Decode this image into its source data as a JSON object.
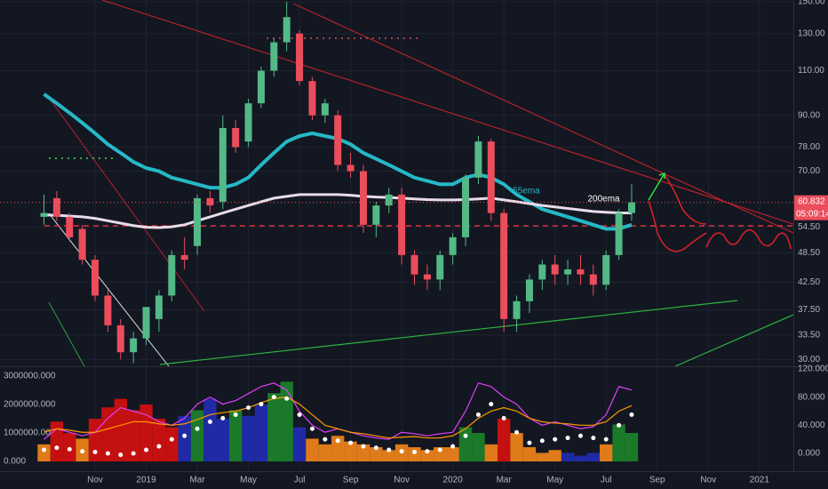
{
  "chart_data": [
    {
      "type": "candlestick",
      "categories": [
        null,
        null,
        null,
        null,
        "Nov",
        null,
        null,
        null,
        "2019",
        null,
        null,
        null,
        "Mar",
        null,
        null,
        null,
        "May",
        null,
        null,
        null,
        "Jul",
        null,
        null,
        null,
        "Sep",
        null,
        null,
        null,
        "Nov",
        null,
        null,
        null,
        "2020",
        null,
        null,
        null,
        "Mar",
        null,
        null,
        null,
        "May",
        null,
        null,
        null,
        "Jul",
        null,
        null,
        null,
        "Sep",
        null,
        null,
        null,
        "Nov",
        null,
        null,
        null,
        "2021",
        null,
        null
      ],
      "open": [
        57,
        62,
        57,
        54,
        47,
        40,
        35,
        31,
        33,
        36,
        40,
        48,
        50,
        62,
        61,
        85,
        80,
        95,
        110,
        125,
        130,
        105,
        90,
        90,
        72,
        70,
        55,
        60,
        63,
        48,
        44,
        43,
        48,
        52,
        68,
        80,
        58,
        36,
        39,
        43,
        46,
        44,
        45,
        44,
        42,
        48,
        58,
        null,
        null,
        null,
        null,
        null,
        null,
        null,
        null,
        null,
        null,
        null,
        null
      ],
      "high": [
        63,
        64,
        58,
        55,
        48,
        41,
        36,
        34,
        38,
        41,
        49,
        52,
        63,
        64,
        90,
        88,
        97,
        112,
        127,
        150,
        132,
        107,
        97,
        92,
        76,
        72,
        61,
        65,
        65,
        49,
        46,
        49,
        53,
        69,
        82,
        81,
        59,
        40,
        44,
        47,
        48,
        47,
        48,
        46,
        49,
        59,
        66,
        null,
        null,
        null,
        null,
        null,
        null,
        null,
        null,
        null,
        null,
        null,
        null
      ],
      "low": [
        55,
        56,
        51,
        46,
        39,
        34,
        30,
        29.5,
        32,
        34,
        39,
        45,
        48,
        58,
        59,
        76,
        78,
        93,
        107,
        120,
        103,
        88,
        87,
        70,
        68,
        53,
        52,
        58,
        46,
        42,
        41,
        41,
        46,
        50,
        66,
        56,
        34,
        34,
        37,
        41,
        42,
        42,
        42,
        40,
        41,
        47,
        56,
        null,
        null,
        null,
        null,
        null,
        null,
        null,
        null,
        null,
        null,
        null,
        null
      ],
      "close": [
        58,
        57,
        52,
        47,
        40,
        35,
        31,
        33,
        38,
        40,
        48,
        47,
        62,
        60,
        85,
        78,
        95,
        110,
        125,
        140,
        105,
        90,
        95,
        72,
        70,
        55,
        60,
        63,
        48,
        44,
        43,
        48,
        52,
        68,
        80,
        58,
        36,
        39,
        43,
        46,
        44,
        45,
        44,
        42,
        48,
        58,
        60.832,
        null,
        null,
        null,
        null,
        null,
        null,
        null,
        null,
        null,
        null,
        null,
        null
      ],
      "up_color": "#53b987",
      "down_color": "#eb4d5c",
      "overlays": [
        {
          "name": "55ema",
          "color": "#26b8c6",
          "values": [
            99,
            95,
            91,
            87,
            83,
            79,
            76,
            73,
            71,
            70,
            68,
            67,
            66,
            65,
            65,
            66,
            68,
            72,
            76,
            80,
            82,
            83,
            82,
            81,
            79,
            76,
            74,
            72,
            70,
            68,
            67,
            66,
            66,
            68,
            69,
            68,
            66,
            63,
            61,
            59,
            58,
            57,
            56,
            55,
            54,
            54,
            55,
            null,
            null,
            null,
            null,
            null,
            null,
            null,
            null,
            null,
            null,
            null,
            null
          ]
        },
        {
          "name": "200ema",
          "color": "#e8dce8",
          "values": [
            57.5,
            57.4,
            57.2,
            57,
            56.6,
            56,
            55.4,
            54.8,
            54.4,
            54.3,
            54.5,
            55,
            56,
            57,
            58,
            59,
            60,
            61,
            62,
            62.5,
            63,
            63,
            63,
            63,
            62.8,
            62.5,
            62.3,
            62.2,
            62,
            61.8,
            61.6,
            61.5,
            61.5,
            61.6,
            61.8,
            62,
            61.5,
            61,
            60.5,
            60,
            59.6,
            59.2,
            58.8,
            58.4,
            58.2,
            58,
            58,
            null,
            null,
            null,
            null,
            null,
            null,
            null,
            null,
            null,
            null,
            null,
            null
          ]
        }
      ],
      "log_scale": true,
      "grid": true,
      "ylim": [
        29.1,
        151.2
      ],
      "yticks": [
        {
          "value": 150,
          "label": "150.00"
        },
        {
          "value": 130,
          "label": "130.00"
        },
        {
          "value": 110,
          "label": "110.00"
        },
        {
          "value": 90,
          "label": "90.00"
        },
        {
          "value": 78,
          "label": "78.00"
        },
        {
          "value": 70,
          "label": "70.00"
        },
        {
          "value": 54.5,
          "label": "54.50"
        },
        {
          "value": 48.5,
          "label": "48.50"
        },
        {
          "value": 42.5,
          "label": "42.50"
        },
        {
          "value": 37.5,
          "label": "37.50"
        },
        {
          "value": 33.5,
          "label": "33.50"
        },
        {
          "value": 30,
          "label": "30.00"
        }
      ],
      "last_price": 60.832,
      "countdown": "05:09:14"
    },
    {
      "type": "area",
      "volume": {
        "values": [
          600000,
          1400000,
          1000000,
          800000,
          1500000,
          1900000,
          2200000,
          1800000,
          2000000,
          1500000,
          1200000,
          1600000,
          1800000,
          2200000,
          1500000,
          1800000,
          1600000,
          2000000,
          2400000,
          2800000,
          1200000,
          800000,
          600000,
          900000,
          700000,
          600000,
          500000,
          400000,
          600000,
          500000,
          400000,
          500000,
          500000,
          1200000,
          1000000,
          600000,
          1500000,
          1000000,
          500000,
          300000,
          400000,
          300000,
          200000,
          300000,
          600000,
          1300000,
          1000000
        ],
        "colors": [
          "#e07b1a",
          "#c41010",
          "#c41010",
          "#e07b1a",
          "#c41010",
          "#c41010",
          "#c41010",
          "#c41010",
          "#c41010",
          "#c41010",
          "#c41010",
          "#1f2aa6",
          "#1b7a2a",
          "#1f2aa6",
          "#1f2aa6",
          "#1b7a2a",
          "#1f2aa6",
          "#1f2aa6",
          "#1b7a2a",
          "#1b7a2a",
          "#1f2aa6",
          "#e07b1a",
          "#e07b1a",
          "#e07b1a",
          "#e07b1a",
          "#e07b1a",
          "#e07b1a",
          "#e07b1a",
          "#e07b1a",
          "#e07b1a",
          "#e07b1a",
          "#e07b1a",
          "#e07b1a",
          "#1b7a2a",
          "#1b7a2a",
          "#e07b1a",
          "#c41010",
          "#e07b1a",
          "#e07b1a",
          "#e07b1a",
          "#e07b1a",
          "#1f2aa6",
          "#1f2aa6",
          "#1f2aa6",
          "#e07b1a",
          "#1b7a2a",
          "#1b7a2a"
        ]
      },
      "series": [
        {
          "color": "#e040fb",
          "axis": "y2",
          "values": [
            20,
            35,
            30,
            25,
            30,
            50,
            65,
            60,
            55,
            45,
            40,
            50,
            70,
            80,
            70,
            75,
            85,
            95,
            100,
            90,
            60,
            40,
            30,
            35,
            30,
            25,
            22,
            20,
            30,
            28,
            25,
            28,
            30,
            60,
            100,
            95,
            80,
            70,
            50,
            40,
            45,
            40,
            35,
            38,
            55,
            95,
            90
          ]
        },
        {
          "color": "#ff9800",
          "axis": "y2",
          "values": [
            30,
            35,
            33,
            30,
            30,
            35,
            40,
            45,
            45,
            42,
            40,
            42,
            48,
            55,
            58,
            60,
            65,
            72,
            78,
            80,
            70,
            55,
            40,
            35,
            30,
            28,
            25,
            22,
            23,
            24,
            22,
            22,
            25,
            35,
            50,
            60,
            65,
            60,
            50,
            45,
            43,
            42,
            40,
            40,
            45,
            60,
            68
          ]
        },
        {
          "color": "#ffffff",
          "axis": "y2",
          "style": "dots",
          "values": [
            5,
            8,
            6,
            3,
            2,
            0,
            -2,
            0,
            5,
            10,
            20,
            25,
            35,
            45,
            50,
            55,
            65,
            70,
            80,
            78,
            55,
            35,
            20,
            18,
            15,
            10,
            8,
            5,
            3,
            2,
            3,
            5,
            10,
            25,
            55,
            70,
            50,
            30,
            15,
            18,
            20,
            22,
            25,
            22,
            20,
            40,
            55
          ]
        }
      ],
      "ylim": [
        -343750,
        3312500
      ],
      "yticks": [
        {
          "value": 3000000,
          "label": "3000000.000"
        },
        {
          "value": 2000000,
          "label": "2000000.000"
        },
        {
          "value": 1000000,
          "label": "1000000.000"
        },
        {
          "value": 0,
          "label": "0.000"
        }
      ],
      "y2lim": [
        -25.3,
        122.5
      ],
      "y2ticks": [
        {
          "value": 120,
          "label": "120.000"
        },
        {
          "value": 80,
          "label": "80.000"
        },
        {
          "value": 40,
          "label": "40.000"
        },
        {
          "value": 0,
          "label": "0.000"
        }
      ]
    }
  ]
}
